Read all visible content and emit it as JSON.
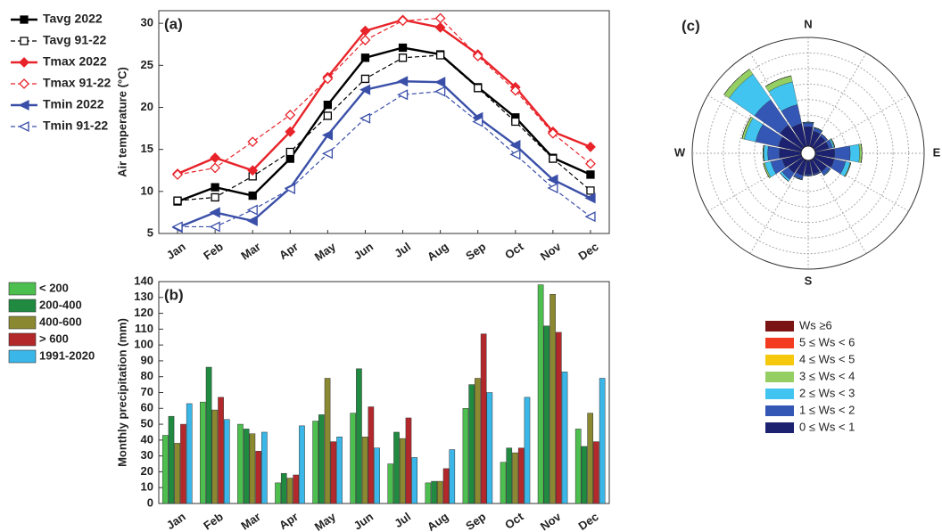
{
  "chart_data": [
    {
      "type": "line",
      "label": "(a)",
      "ylabel": "Air temperature  (°C)",
      "categories": [
        "Jan",
        "Feb",
        "Mar",
        "Apr",
        "May",
        "Jun",
        "Jul",
        "Aug",
        "Sep",
        "Oct",
        "Nov",
        "Dec"
      ],
      "ylim": [
        5,
        31.5
      ],
      "yticks": [
        5,
        10,
        15,
        20,
        25,
        30
      ],
      "series": [
        {
          "name": "Tavg 2022",
          "color": "#000000",
          "marker": "square",
          "filled": true,
          "dashed": false,
          "values": [
            8.8,
            10.5,
            9.5,
            13.9,
            20.3,
            25.9,
            27.1,
            26.3,
            22.4,
            18.8,
            14.0,
            12.0
          ]
        },
        {
          "name": "Tavg 91-22",
          "color": "#000000",
          "marker": "square",
          "filled": false,
          "dashed": true,
          "values": [
            8.9,
            9.3,
            11.8,
            14.7,
            19.0,
            23.4,
            25.9,
            26.2,
            22.3,
            18.3,
            13.9,
            10.1
          ]
        },
        {
          "name": "Tmax 2022",
          "color": "#e8232a",
          "marker": "diamond",
          "filled": true,
          "dashed": false,
          "values": [
            12.1,
            14.0,
            12.5,
            17.1,
            23.6,
            29.1,
            30.4,
            29.5,
            26.3,
            22.4,
            17.1,
            15.3
          ]
        },
        {
          "name": "Tmax 91-22",
          "color": "#e8232a",
          "marker": "diamond",
          "filled": false,
          "dashed": true,
          "values": [
            12.0,
            12.8,
            15.9,
            19.1,
            23.4,
            28.0,
            30.3,
            30.6,
            26.1,
            22.0,
            16.9,
            13.3
          ]
        },
        {
          "name": "Tmin 2022",
          "color": "#3a4fa8",
          "marker": "triangle",
          "filled": true,
          "dashed": false,
          "values": [
            5.7,
            7.5,
            6.5,
            10.4,
            16.7,
            22.1,
            23.1,
            23.0,
            18.8,
            15.5,
            11.4,
            9.2
          ]
        },
        {
          "name": "Tmin 91-22",
          "color": "#3a4fa8",
          "marker": "triangle",
          "filled": false,
          "dashed": true,
          "values": [
            5.8,
            5.8,
            7.8,
            10.3,
            14.5,
            18.7,
            21.5,
            21.9,
            18.3,
            14.4,
            10.4,
            7.0
          ]
        }
      ]
    },
    {
      "type": "bar",
      "label": "(b)",
      "ylabel": "Monthly precipitation  (mm)",
      "categories": [
        "Jan",
        "Feb",
        "Mar",
        "Apr",
        "May",
        "Jun",
        "Jul",
        "Aug",
        "Sep",
        "Oct",
        "Nov",
        "Dec"
      ],
      "ylim": [
        0,
        140
      ],
      "yticks": [
        0,
        10,
        20,
        30,
        40,
        50,
        60,
        70,
        80,
        90,
        100,
        110,
        120,
        130,
        140
      ],
      "series": [
        {
          "name": "< 200",
          "color": "#4dbf4f",
          "values": [
            43,
            64,
            50,
            13,
            52,
            57,
            25,
            13,
            60,
            26,
            138,
            47
          ]
        },
        {
          "name": "200-400",
          "color": "#1f8a40",
          "values": [
            55,
            86,
            47,
            19,
            56,
            85,
            45,
            14,
            75,
            35,
            112,
            36
          ]
        },
        {
          "name": "400-600",
          "color": "#8a8830",
          "values": [
            38,
            59,
            44,
            16,
            79,
            42,
            41,
            14,
            79,
            32,
            132,
            57
          ]
        },
        {
          "name": "> 600",
          "color": "#b3282b",
          "values": [
            50,
            67,
            33,
            18,
            39,
            61,
            54,
            22,
            107,
            35,
            108,
            39
          ]
        },
        {
          "name": "1991-2020",
          "color": "#3ab7e8",
          "values": [
            63,
            53,
            45,
            49,
            42,
            35,
            29,
            34,
            70,
            67,
            83,
            79
          ]
        }
      ]
    },
    {
      "type": "windrose",
      "label": "(c)",
      "compass": [
        "N",
        "E",
        "S",
        "W"
      ],
      "x": [
        0,
        22.5,
        45,
        67.5,
        90,
        112.5,
        135,
        157.5,
        180,
        202.5,
        225,
        247.5,
        270,
        292.5,
        315,
        337.5
      ],
      "rlim": [
        0,
        14
      ],
      "rticks": [
        2,
        4,
        6,
        8,
        10,
        12,
        14
      ],
      "series": [
        {
          "name": "0 ≤ Ws < 1",
          "color": "#1c2270",
          "values": [
            2.5,
            2,
            1.8,
            1.8,
            2.5,
            2.5,
            2,
            1.8,
            1.8,
            2,
            2.2,
            2.5,
            2.8,
            3,
            3.5,
            3
          ]
        },
        {
          "name": "1 ≤ Ws < 2",
          "color": "#3457b5",
          "values": [
            0.5,
            0.4,
            0.3,
            0.5,
            2,
            1.5,
            0.5,
            0.2,
            0.2,
            0.5,
            1,
            1.5,
            1.5,
            3,
            4,
            2.5
          ]
        },
        {
          "name": "2 ≤ Ws < 3",
          "color": "#41c4f0",
          "values": [
            0.1,
            0.1,
            0,
            0.2,
            1.2,
            0.6,
            0.1,
            0,
            0,
            0.1,
            0.3,
            0.8,
            0.5,
            1.5,
            4,
            3
          ]
        },
        {
          "name": "3 ≤ Ws < 4",
          "color": "#95cf63",
          "values": [
            0,
            0,
            0,
            0.1,
            0.3,
            0.1,
            0,
            0,
            0,
            0,
            0,
            0.2,
            0.1,
            0.3,
            0.8,
            0.8
          ]
        },
        {
          "name": "4 ≤ Ws < 5",
          "color": "#f5c80c",
          "values": [
            0,
            0,
            0,
            0,
            0,
            0,
            0,
            0,
            0,
            0,
            0,
            0,
            0,
            0,
            0,
            0
          ]
        },
        {
          "name": "5 ≤ Ws < 6",
          "color": "#f23b20",
          "values": [
            0,
            0,
            0,
            0,
            0,
            0,
            0,
            0,
            0,
            0,
            0,
            0,
            0,
            0,
            0,
            0
          ]
        },
        {
          "name": "Ws ≥6",
          "color": "#7a1414",
          "values": [
            0,
            0,
            0,
            0,
            0,
            0,
            0,
            0,
            0,
            0,
            0,
            0,
            0,
            0,
            0,
            0
          ]
        }
      ]
    }
  ]
}
